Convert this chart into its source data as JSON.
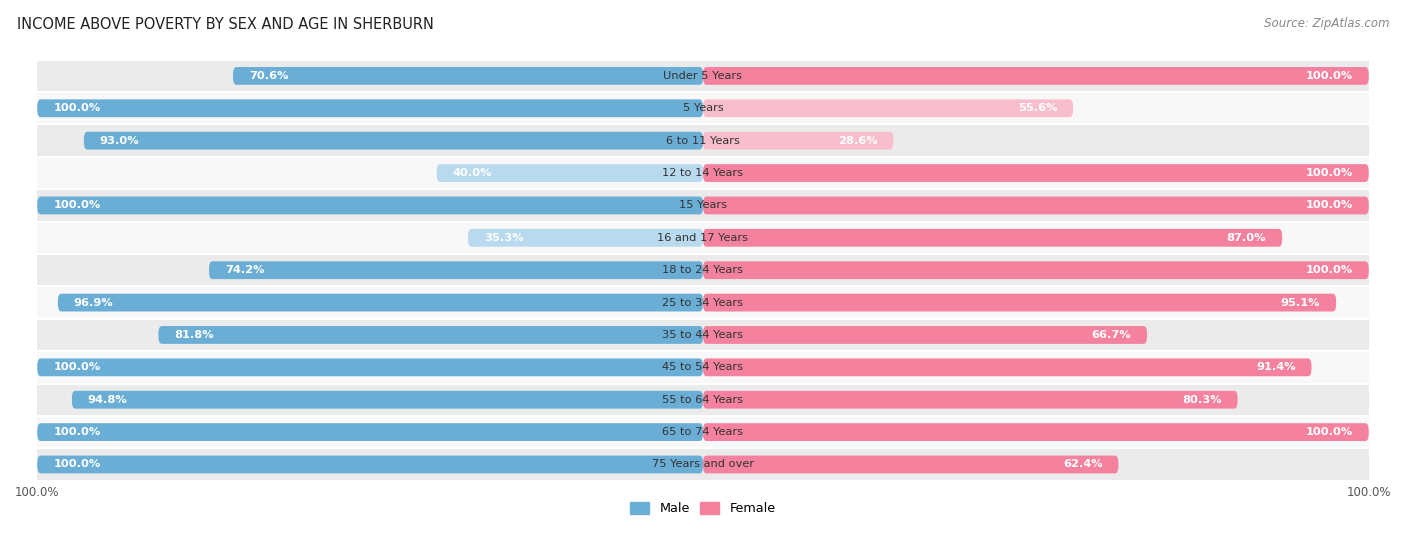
{
  "title": "INCOME ABOVE POVERTY BY SEX AND AGE IN SHERBURN",
  "source": "Source: ZipAtlas.com",
  "categories": [
    "Under 5 Years",
    "5 Years",
    "6 to 11 Years",
    "12 to 14 Years",
    "15 Years",
    "16 and 17 Years",
    "18 to 24 Years",
    "25 to 34 Years",
    "35 to 44 Years",
    "45 to 54 Years",
    "55 to 64 Years",
    "65 to 74 Years",
    "75 Years and over"
  ],
  "male_values": [
    70.6,
    100.0,
    93.0,
    40.0,
    100.0,
    35.3,
    74.2,
    96.9,
    81.8,
    100.0,
    94.8,
    100.0,
    100.0
  ],
  "female_values": [
    100.0,
    55.6,
    28.6,
    100.0,
    100.0,
    87.0,
    100.0,
    95.1,
    66.7,
    91.4,
    80.3,
    100.0,
    62.4
  ],
  "male_color": "#6aaed6",
  "male_color_light": "#b8d9ee",
  "female_color": "#f4829e",
  "female_color_light": "#f9bece",
  "male_label": "Male",
  "female_label": "Female",
  "male_legend_color": "#6aaed6",
  "female_legend_color": "#f4829e",
  "background_color": "#ffffff",
  "row_bg_light": "#ebebeb",
  "row_bg_white": "#f8f8f8",
  "title_fontsize": 10.5,
  "source_fontsize": 8.5,
  "label_fontsize": 8.2,
  "tick_fontsize": 8.5,
  "category_fontsize": 8.2
}
